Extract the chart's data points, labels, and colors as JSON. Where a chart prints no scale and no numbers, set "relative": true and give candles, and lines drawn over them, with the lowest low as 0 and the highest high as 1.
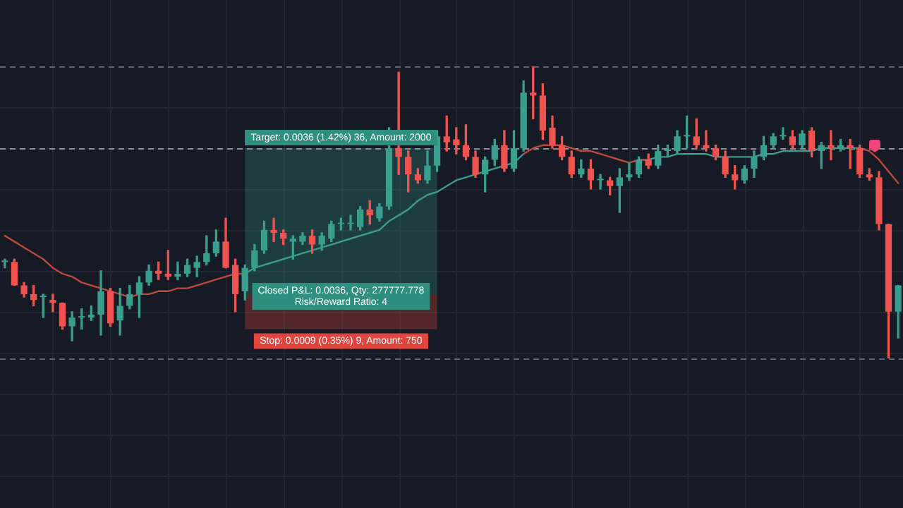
{
  "chart_data": {
    "type": "candlestick",
    "relative": true,
    "categories": [
      null,
      null,
      null,
      null,
      null,
      null,
      null,
      null,
      null,
      null,
      null,
      null,
      null,
      null,
      null,
      null,
      null,
      null,
      null,
      null,
      null,
      null,
      null,
      null,
      null,
      null,
      null,
      null,
      null,
      null,
      null,
      null,
      null,
      null,
      null,
      null,
      null,
      null,
      null,
      null,
      null,
      null,
      null,
      null,
      null,
      null,
      null,
      null,
      null,
      null,
      null,
      null,
      null,
      null,
      null,
      null,
      null,
      null,
      null,
      null,
      null,
      null,
      null,
      null,
      null,
      null,
      null,
      null,
      null,
      null,
      null,
      null,
      null,
      null,
      null,
      null,
      null,
      null,
      null,
      null,
      null,
      null,
      null,
      null,
      null,
      null,
      null,
      null,
      null,
      null,
      null,
      null,
      null,
      null
    ],
    "ohlc": [
      [
        0.33,
        0.34,
        0.31,
        0.33
      ],
      [
        0.33,
        0.34,
        0.25,
        0.25
      ],
      [
        0.25,
        0.26,
        0.21,
        0.22
      ],
      [
        0.22,
        0.25,
        0.18,
        0.2
      ],
      [
        0.21,
        0.22,
        0.14,
        0.21
      ],
      [
        0.2,
        0.22,
        0.16,
        0.19
      ],
      [
        0.19,
        0.19,
        0.1,
        0.11
      ],
      [
        0.11,
        0.16,
        0.06,
        0.14
      ],
      [
        0.14,
        0.17,
        0.1,
        0.14
      ],
      [
        0.14,
        0.18,
        0.13,
        0.15
      ],
      [
        0.15,
        0.3,
        0.08,
        0.23
      ],
      [
        0.23,
        0.24,
        0.11,
        0.12
      ],
      [
        0.13,
        0.24,
        0.08,
        0.18
      ],
      [
        0.18,
        0.25,
        0.17,
        0.22
      ],
      [
        0.22,
        0.28,
        0.14,
        0.26
      ],
      [
        0.26,
        0.32,
        0.25,
        0.3
      ],
      [
        0.3,
        0.33,
        0.27,
        0.29
      ],
      [
        0.29,
        0.37,
        0.27,
        0.28
      ],
      [
        0.28,
        0.33,
        0.27,
        0.29
      ],
      [
        0.29,
        0.34,
        0.28,
        0.32
      ],
      [
        0.31,
        0.35,
        0.28,
        0.33
      ],
      [
        0.33,
        0.42,
        0.32,
        0.36
      ],
      [
        0.36,
        0.44,
        0.35,
        0.4
      ],
      [
        0.4,
        0.48,
        0.31,
        0.31
      ],
      [
        0.32,
        0.34,
        0.16,
        0.22
      ],
      [
        0.23,
        0.32,
        0.2,
        0.31
      ],
      [
        0.31,
        0.39,
        0.3,
        0.37
      ],
      [
        0.37,
        0.47,
        0.36,
        0.44
      ],
      [
        0.44,
        0.48,
        0.4,
        0.43
      ],
      [
        0.43,
        0.44,
        0.39,
        0.41
      ],
      [
        0.4,
        0.42,
        0.34,
        0.41
      ],
      [
        0.4,
        0.43,
        0.39,
        0.42
      ],
      [
        0.42,
        0.44,
        0.36,
        0.39
      ],
      [
        0.39,
        0.43,
        0.37,
        0.42
      ],
      [
        0.41,
        0.47,
        0.4,
        0.46
      ],
      [
        0.46,
        0.48,
        0.44,
        0.46
      ],
      [
        0.46,
        0.49,
        0.44,
        0.46
      ],
      [
        0.45,
        0.52,
        0.44,
        0.51
      ],
      [
        0.51,
        0.54,
        0.46,
        0.49
      ],
      [
        0.48,
        0.53,
        0.47,
        0.52
      ],
      [
        0.52,
        0.79,
        0.51,
        0.72
      ],
      [
        0.72,
        0.98,
        0.63,
        0.69
      ],
      [
        0.69,
        0.71,
        0.57,
        0.63
      ],
      [
        0.63,
        0.65,
        0.6,
        0.61
      ],
      [
        0.61,
        0.71,
        0.6,
        0.66
      ],
      [
        0.66,
        0.78,
        0.64,
        0.76
      ],
      [
        0.76,
        0.83,
        0.71,
        0.74
      ],
      [
        0.75,
        0.79,
        0.7,
        0.73
      ],
      [
        0.73,
        0.8,
        0.68,
        0.69
      ],
      [
        0.69,
        0.71,
        0.62,
        0.63
      ],
      [
        0.63,
        0.69,
        0.57,
        0.68
      ],
      [
        0.68,
        0.75,
        0.66,
        0.73
      ],
      [
        0.73,
        0.78,
        0.64,
        0.65
      ],
      [
        0.65,
        0.78,
        0.64,
        0.72
      ],
      [
        0.72,
        0.95,
        0.71,
        0.91
      ],
      [
        0.91,
        1,
        0.82,
        0.9
      ],
      [
        0.9,
        0.94,
        0.75,
        0.78
      ],
      [
        0.79,
        0.83,
        0.72,
        0.73
      ],
      [
        0.73,
        0.76,
        0.68,
        0.69
      ],
      [
        0.69,
        0.71,
        0.62,
        0.63
      ],
      [
        0.63,
        0.68,
        0.62,
        0.65
      ],
      [
        0.65,
        0.68,
        0.58,
        0.61
      ],
      [
        0.61,
        0.63,
        0.58,
        0.61
      ],
      [
        0.61,
        0.62,
        0.56,
        0.59
      ],
      [
        0.59,
        0.65,
        0.5,
        0.62
      ],
      [
        0.62,
        0.67,
        0.61,
        0.63
      ],
      [
        0.63,
        0.69,
        0.62,
        0.68
      ],
      [
        0.68,
        0.7,
        0.65,
        0.66
      ],
      [
        0.66,
        0.73,
        0.65,
        0.71
      ],
      [
        0.71,
        0.73,
        0.69,
        0.71
      ],
      [
        0.71,
        0.78,
        0.7,
        0.76
      ],
      [
        0.76,
        0.83,
        0.72,
        0.76
      ],
      [
        0.76,
        0.82,
        0.72,
        0.73
      ],
      [
        0.73,
        0.78,
        0.71,
        0.72
      ],
      [
        0.72,
        0.73,
        0.68,
        0.69
      ],
      [
        0.69,
        0.71,
        0.62,
        0.63
      ],
      [
        0.63,
        0.66,
        0.58,
        0.61
      ],
      [
        0.61,
        0.66,
        0.6,
        0.65
      ],
      [
        0.65,
        0.71,
        0.62,
        0.69
      ],
      [
        0.69,
        0.76,
        0.68,
        0.73
      ],
      [
        0.73,
        0.77,
        0.72,
        0.76
      ],
      [
        0.76,
        0.79,
        0.75,
        0.76
      ],
      [
        0.76,
        0.78,
        0.72,
        0.73
      ],
      [
        0.73,
        0.78,
        0.72,
        0.77
      ],
      [
        0.78,
        0.79,
        0.69,
        0.71
      ],
      [
        0.71,
        0.74,
        0.65,
        0.73
      ],
      [
        0.73,
        0.78,
        0.68,
        0.72
      ],
      [
        0.72,
        0.75,
        0.71,
        0.73
      ],
      [
        0.73,
        0.75,
        0.65,
        0.72
      ],
      [
        0.72,
        0.73,
        0.62,
        0.63
      ],
      [
        0.63,
        0.65,
        0.61,
        0.62
      ],
      [
        0.62,
        0.64,
        0.44,
        0.46
      ],
      [
        0.46,
        0.46,
        0.0,
        0.16
      ],
      [
        0.16,
        0.25,
        0.07,
        0.25
      ]
    ],
    "series": [
      {
        "type": "line",
        "color": "#b84a3e",
        "values": [
          0.42,
          0.4,
          0.38,
          0.36,
          0.34,
          0.31,
          0.29,
          0.28,
          0.26,
          0.25,
          0.24,
          0.23,
          0.22,
          0.21,
          0.22,
          0.22,
          0.23,
          0.23,
          0.24,
          0.24,
          0.25,
          0.26,
          0.27,
          0.28,
          0.29,
          0.29,
          null,
          null,
          null,
          null,
          null,
          null,
          null,
          null,
          null,
          null,
          null,
          null,
          null,
          null,
          null,
          null,
          null,
          null,
          null,
          null,
          null,
          null,
          null,
          null,
          null,
          null,
          null,
          null,
          0.7,
          0.72,
          0.73,
          0.73,
          0.73,
          0.72,
          0.71,
          0.71,
          0.7,
          0.69,
          0.68,
          0.67,
          0.68,
          0.68,
          null,
          null,
          null,
          null,
          null,
          null,
          null,
          null,
          null,
          null,
          null,
          null,
          null,
          null,
          null,
          null,
          null,
          null,
          null,
          null,
          null,
          0.72,
          0.71,
          0.68,
          0.64,
          0.6
        ]
      },
      {
        "type": "line",
        "color": "#3c9b8c",
        "values": [
          null,
          null,
          null,
          null,
          null,
          null,
          null,
          null,
          null,
          null,
          null,
          null,
          null,
          null,
          null,
          null,
          null,
          null,
          null,
          null,
          null,
          null,
          null,
          null,
          null,
          0.29,
          0.31,
          0.32,
          0.33,
          0.34,
          0.35,
          0.36,
          0.37,
          0.38,
          0.39,
          0.4,
          0.41,
          0.42,
          0.43,
          0.44,
          0.47,
          0.49,
          0.51,
          0.54,
          0.56,
          0.57,
          0.59,
          0.61,
          0.62,
          0.63,
          0.64,
          0.65,
          0.66,
          0.67,
          0.7,
          null,
          null,
          null,
          null,
          null,
          null,
          null,
          null,
          null,
          null,
          null,
          0.68,
          0.68,
          0.69,
          0.69,
          0.7,
          0.7,
          0.7,
          0.7,
          0.69,
          0.69,
          0.69,
          0.69,
          0.69,
          0.7,
          0.7,
          0.71,
          0.71,
          0.71,
          0.71,
          0.72,
          0.72,
          0.72,
          0.72,
          0.72,
          null,
          null,
          null,
          null
        ]
      }
    ],
    "bands": [
      {
        "axis": "y",
        "from": 0.22,
        "to": 0.72,
        "label": "Target: 0.0036 (1.42%) 36, Amount: 2000",
        "color": "#2e8f80"
      },
      {
        "axis": "y",
        "from": 0.22,
        "to": 0.1,
        "label": "Stop: 0.0009 (0.35%) 9, Amount: 750",
        "color": "#e0463e"
      }
    ],
    "ref_lines": [
      {
        "axis": "y",
        "value": 1,
        "line_style": "dashed",
        "color": "#5d6270"
      },
      {
        "axis": "y",
        "value": 0.72,
        "line_style": "dashed",
        "color": "#8a8f99"
      },
      {
        "axis": "y",
        "value": 0,
        "line_style": "dashed",
        "color": "#5d6270"
      }
    ],
    "annotations": [
      "Closed P&L: 0.0036, Qty: 277777.778\nRisk/Reward Ratio: 4"
    ],
    "grid": true,
    "marker": "none"
  }
}
